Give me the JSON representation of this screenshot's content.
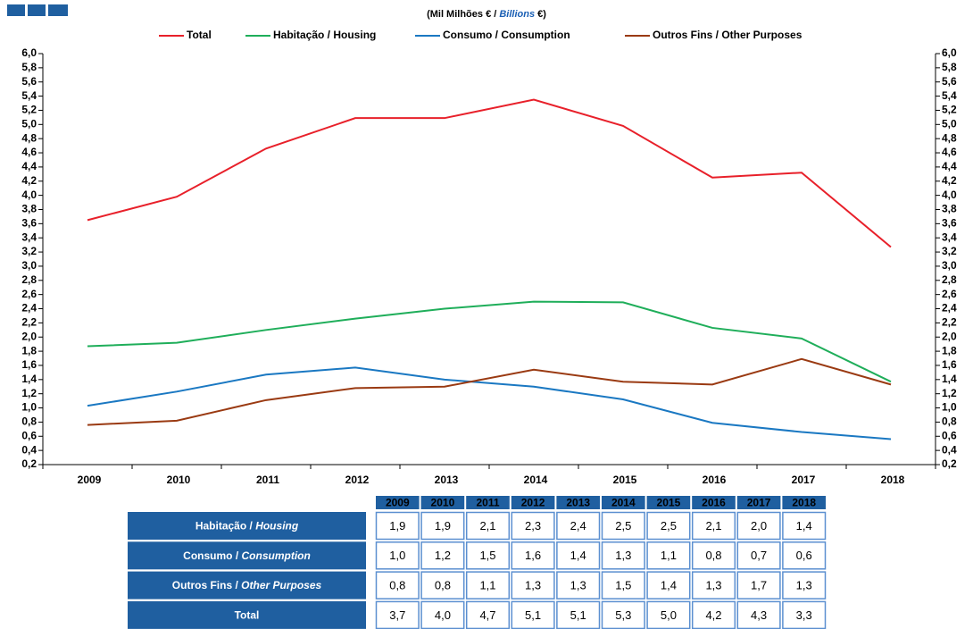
{
  "chart_data": {
    "type": "line",
    "subtitle": [
      "(Mil Milhões € /",
      "Billions",
      "€)"
    ],
    "categories": [
      "2009",
      "2010",
      "2011",
      "2012",
      "2013",
      "2014",
      "2015",
      "2016",
      "2017",
      "2018"
    ],
    "series": [
      {
        "name": "Total",
        "color": "#e8202a",
        "values": [
          3.65,
          3.98,
          4.66,
          5.09,
          5.09,
          5.35,
          4.98,
          4.25,
          4.32,
          3.27
        ]
      },
      {
        "name": "Habitação / Housing",
        "color": "#1fae5a",
        "values": [
          1.87,
          1.92,
          2.1,
          2.26,
          2.4,
          2.5,
          2.49,
          2.13,
          1.98,
          1.37
        ]
      },
      {
        "name": "Consumo / Consumption",
        "color": "#1a78c2",
        "values": [
          1.03,
          1.23,
          1.47,
          1.57,
          1.4,
          1.3,
          1.12,
          0.79,
          0.66,
          0.56
        ]
      },
      {
        "name": "Outros Fins / Other Purposes",
        "color": "#9a3a12",
        "values": [
          0.76,
          0.82,
          1.11,
          1.28,
          1.3,
          1.54,
          1.37,
          1.33,
          1.69,
          1.33
        ]
      }
    ],
    "ylim": [
      0.2,
      6.0
    ],
    "yticks": [
      {
        "value": 0.2,
        "label": "0,2"
      },
      {
        "value": 0.4,
        "label": "0,4"
      },
      {
        "value": 0.6,
        "label": "0,6"
      },
      {
        "value": 0.8,
        "label": "0,8"
      },
      {
        "value": 1.0,
        "label": "1,0"
      },
      {
        "value": 1.2,
        "label": "1,2"
      },
      {
        "value": 1.4,
        "label": "1,4"
      },
      {
        "value": 1.6,
        "label": "1,6"
      },
      {
        "value": 1.8,
        "label": "1,8"
      },
      {
        "value": 2.0,
        "label": "2,0"
      },
      {
        "value": 2.2,
        "label": "2,2"
      },
      {
        "value": 2.4,
        "label": "2,4"
      },
      {
        "value": 2.6,
        "label": "2,6"
      },
      {
        "value": 2.8,
        "label": "2,8"
      },
      {
        "value": 3.0,
        "label": "3,0"
      },
      {
        "value": 3.2,
        "label": "3,2"
      },
      {
        "value": 3.4,
        "label": "3,4"
      },
      {
        "value": 3.6,
        "label": "3,6"
      },
      {
        "value": 3.8,
        "label": "3,8"
      },
      {
        "value": 4.0,
        "label": "4,0"
      },
      {
        "value": 4.2,
        "label": "4,2"
      },
      {
        "value": 4.4,
        "label": "4,4"
      },
      {
        "value": 4.6,
        "label": "4,6"
      },
      {
        "value": 4.8,
        "label": "4,8"
      },
      {
        "value": 5.0,
        "label": "5,0"
      },
      {
        "value": 5.2,
        "label": "5,2"
      },
      {
        "value": 5.4,
        "label": "5,4"
      },
      {
        "value": 5.6,
        "label": "5,6"
      },
      {
        "value": 5.8,
        "label": "5,8"
      },
      {
        "value": 6.0,
        "label": "6,0"
      }
    ],
    "legend": "top",
    "grid": false
  },
  "table": {
    "rows": [
      {
        "label": "Habitação /",
        "label_en": "Housing",
        "cells": [
          "1,9",
          "1,9",
          "2,1",
          "2,3",
          "2,4",
          "2,5",
          "2,5",
          "2,1",
          "2,0",
          "1,4"
        ]
      },
      {
        "label": "Consumo /",
        "label_en": "Consumption",
        "cells": [
          "1,0",
          "1,2",
          "1,5",
          "1,6",
          "1,4",
          "1,3",
          "1,1",
          "0,8",
          "0,7",
          "0,6"
        ]
      },
      {
        "label": "Outros Fins /",
        "label_en": "Other Purposes",
        "cells": [
          "0,8",
          "0,8",
          "1,1",
          "1,3",
          "1,3",
          "1,5",
          "1,4",
          "1,3",
          "1,7",
          "1,3"
        ]
      },
      {
        "label": "Total",
        "cells": [
          "3,7",
          "4,0",
          "4,7",
          "5,1",
          "5,1",
          "5,3",
          "5,0",
          "4,2",
          "4,3",
          "3,3"
        ]
      }
    ]
  }
}
